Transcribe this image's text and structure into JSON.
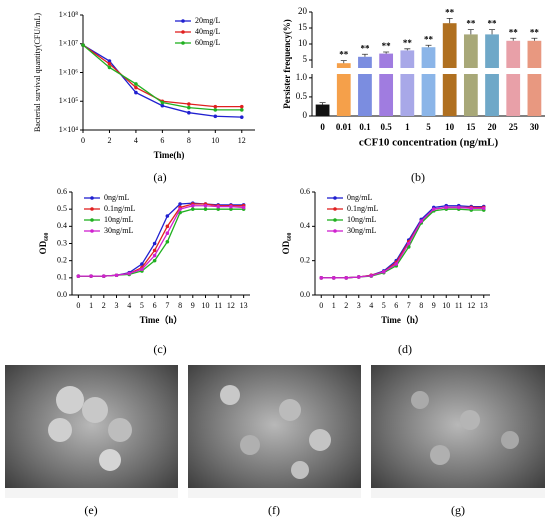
{
  "chart_data": [
    {
      "type": "line",
      "label": "(a)",
      "xlabel": "Time(h)",
      "ylabel": "Bacterial survival quantity(CFU/mL)",
      "log_y": true,
      "x": [
        0,
        2,
        4,
        6,
        8,
        10,
        12
      ],
      "xlim": [
        0,
        13
      ],
      "xticks": [
        0,
        2,
        4,
        6,
        8,
        10,
        12
      ],
      "ylim": [
        10000,
        100000000
      ],
      "yticks": [
        {
          "value": 10000,
          "label": "1×10⁴"
        },
        {
          "value": 100000,
          "label": "1×10⁵"
        },
        {
          "value": 1000000,
          "label": "1×10⁶"
        },
        {
          "value": 10000000,
          "label": "1×10⁷"
        },
        {
          "value": 100000000,
          "label": "1×10⁸"
        }
      ],
      "legend": "upper right",
      "series": [
        {
          "name": "20mg/L",
          "color": "#2020d0",
          "values": [
            9000000,
            2500000,
            200000,
            70000,
            40000,
            30000,
            28000
          ]
        },
        {
          "name": "40mg/L",
          "color": "#e02020",
          "values": [
            9000000,
            2000000,
            300000,
            100000,
            80000,
            65000,
            65000
          ]
        },
        {
          "name": "60mg/L",
          "color": "#20b020",
          "values": [
            9000000,
            1500000,
            400000,
            90000,
            60000,
            50000,
            50000
          ]
        }
      ]
    },
    {
      "type": "broken_bar",
      "label": "(b)",
      "xlabel": "cCF10 concentration (ng/mL)",
      "ylabel": "Persister frequency(%)",
      "categories": [
        "0",
        "0.01",
        "0.1",
        "0.5",
        "1",
        "5",
        "10",
        "15",
        "20",
        "25",
        "30"
      ],
      "values": [
        0.3,
        4,
        6,
        7,
        8,
        9,
        16.5,
        13,
        13,
        11,
        11
      ],
      "errors": [
        0.05,
        0.8,
        0.8,
        0.5,
        0.5,
        0.6,
        1.5,
        1.5,
        1.5,
        0.8,
        0.8
      ],
      "colors": [
        "#111111",
        "#f5a04a",
        "#7b8de0",
        "#a07ce0",
        "#a8a8e8",
        "#8bb5e8",
        "#b07020",
        "#a8a878",
        "#6fa8c8",
        "#e8a0a8",
        "#e89880"
      ],
      "annotations": [
        "**",
        "**",
        "**",
        "**",
        "**",
        "**",
        "**",
        "**",
        "**",
        "**"
      ],
      "ylim_lower": [
        0,
        1.1
      ],
      "yticks_lower": [
        0,
        0.5,
        {
          "value": 1,
          "label": "1.0"
        }
      ],
      "ylim_upper": [
        2.5,
        20
      ],
      "yticks_upper": [
        5,
        10,
        15,
        20
      ]
    },
    {
      "type": "line",
      "label": "(c)",
      "xlabel": "Time（h）",
      "ylabel": "OD₆₀₀",
      "x": [
        0,
        1,
        2,
        3,
        4,
        5,
        6,
        7,
        8,
        9,
        10,
        11,
        12,
        13
      ],
      "xlim": [
        -0.5,
        13.5
      ],
      "xticks": [
        0,
        1,
        2,
        3,
        4,
        5,
        6,
        7,
        8,
        9,
        10,
        11,
        12,
        13
      ],
      "ylim": [
        0,
        0.6
      ],
      "yticks": [
        {
          "value": 0,
          "label": "0.0"
        },
        0.1,
        0.2,
        0.3,
        0.4,
        0.5,
        0.6
      ],
      "legend": "upper left",
      "series": [
        {
          "name": "0ng/mL",
          "color": "#2020d0",
          "values": [
            0.11,
            0.11,
            0.11,
            0.115,
            0.13,
            0.18,
            0.3,
            0.46,
            0.53,
            0.535,
            0.53,
            0.525,
            0.525,
            0.525
          ]
        },
        {
          "name": "0.1ng/mL",
          "color": "#e02020",
          "values": [
            0.11,
            0.11,
            0.11,
            0.115,
            0.125,
            0.16,
            0.26,
            0.4,
            0.51,
            0.53,
            0.53,
            0.52,
            0.52,
            0.52
          ]
        },
        {
          "name": "10ng/mL",
          "color": "#20b020",
          "values": [
            0.11,
            0.11,
            0.11,
            0.115,
            0.12,
            0.14,
            0.2,
            0.31,
            0.48,
            0.5,
            0.5,
            0.5,
            0.5,
            0.5
          ]
        },
        {
          "name": "30ng/mL",
          "color": "#d020d0",
          "values": [
            0.11,
            0.11,
            0.11,
            0.115,
            0.125,
            0.15,
            0.23,
            0.36,
            0.5,
            0.52,
            0.52,
            0.515,
            0.515,
            0.51
          ]
        }
      ]
    },
    {
      "type": "line",
      "label": "(d)",
      "xlabel": "Time（h）",
      "ylabel": "OD₆₀₀",
      "x": [
        0,
        1,
        2,
        3,
        4,
        5,
        6,
        7,
        8,
        9,
        10,
        11,
        12,
        13
      ],
      "xlim": [
        -0.5,
        13.5
      ],
      "xticks": [
        0,
        1,
        2,
        3,
        4,
        5,
        6,
        7,
        8,
        9,
        10,
        11,
        12,
        13
      ],
      "ylim": [
        0,
        0.6
      ],
      "yticks": [
        {
          "value": 0,
          "label": "0.0"
        },
        0.2,
        0.4,
        0.6
      ],
      "legend": "upper left",
      "series": [
        {
          "name": "0ng/mL",
          "color": "#2020d0",
          "values": [
            0.1,
            0.1,
            0.1,
            0.105,
            0.115,
            0.14,
            0.2,
            0.32,
            0.44,
            0.51,
            0.52,
            0.52,
            0.515,
            0.515
          ]
        },
        {
          "name": "0.1ng/mL",
          "color": "#e02020",
          "values": [
            0.1,
            0.1,
            0.1,
            0.105,
            0.115,
            0.135,
            0.19,
            0.31,
            0.43,
            0.5,
            0.51,
            0.51,
            0.51,
            0.51
          ]
        },
        {
          "name": "10ng/mL",
          "color": "#20b020",
          "values": [
            0.1,
            0.1,
            0.1,
            0.105,
            0.11,
            0.13,
            0.17,
            0.28,
            0.42,
            0.49,
            0.5,
            0.5,
            0.495,
            0.495
          ]
        },
        {
          "name": "30ng/mL",
          "color": "#d020d0",
          "values": [
            0.1,
            0.1,
            0.1,
            0.105,
            0.112,
            0.135,
            0.18,
            0.3,
            0.43,
            0.5,
            0.51,
            0.51,
            0.505,
            0.505
          ]
        }
      ]
    }
  ],
  "images": [
    {
      "label": "(e)"
    },
    {
      "label": "(f)"
    },
    {
      "label": "(g)"
    }
  ]
}
